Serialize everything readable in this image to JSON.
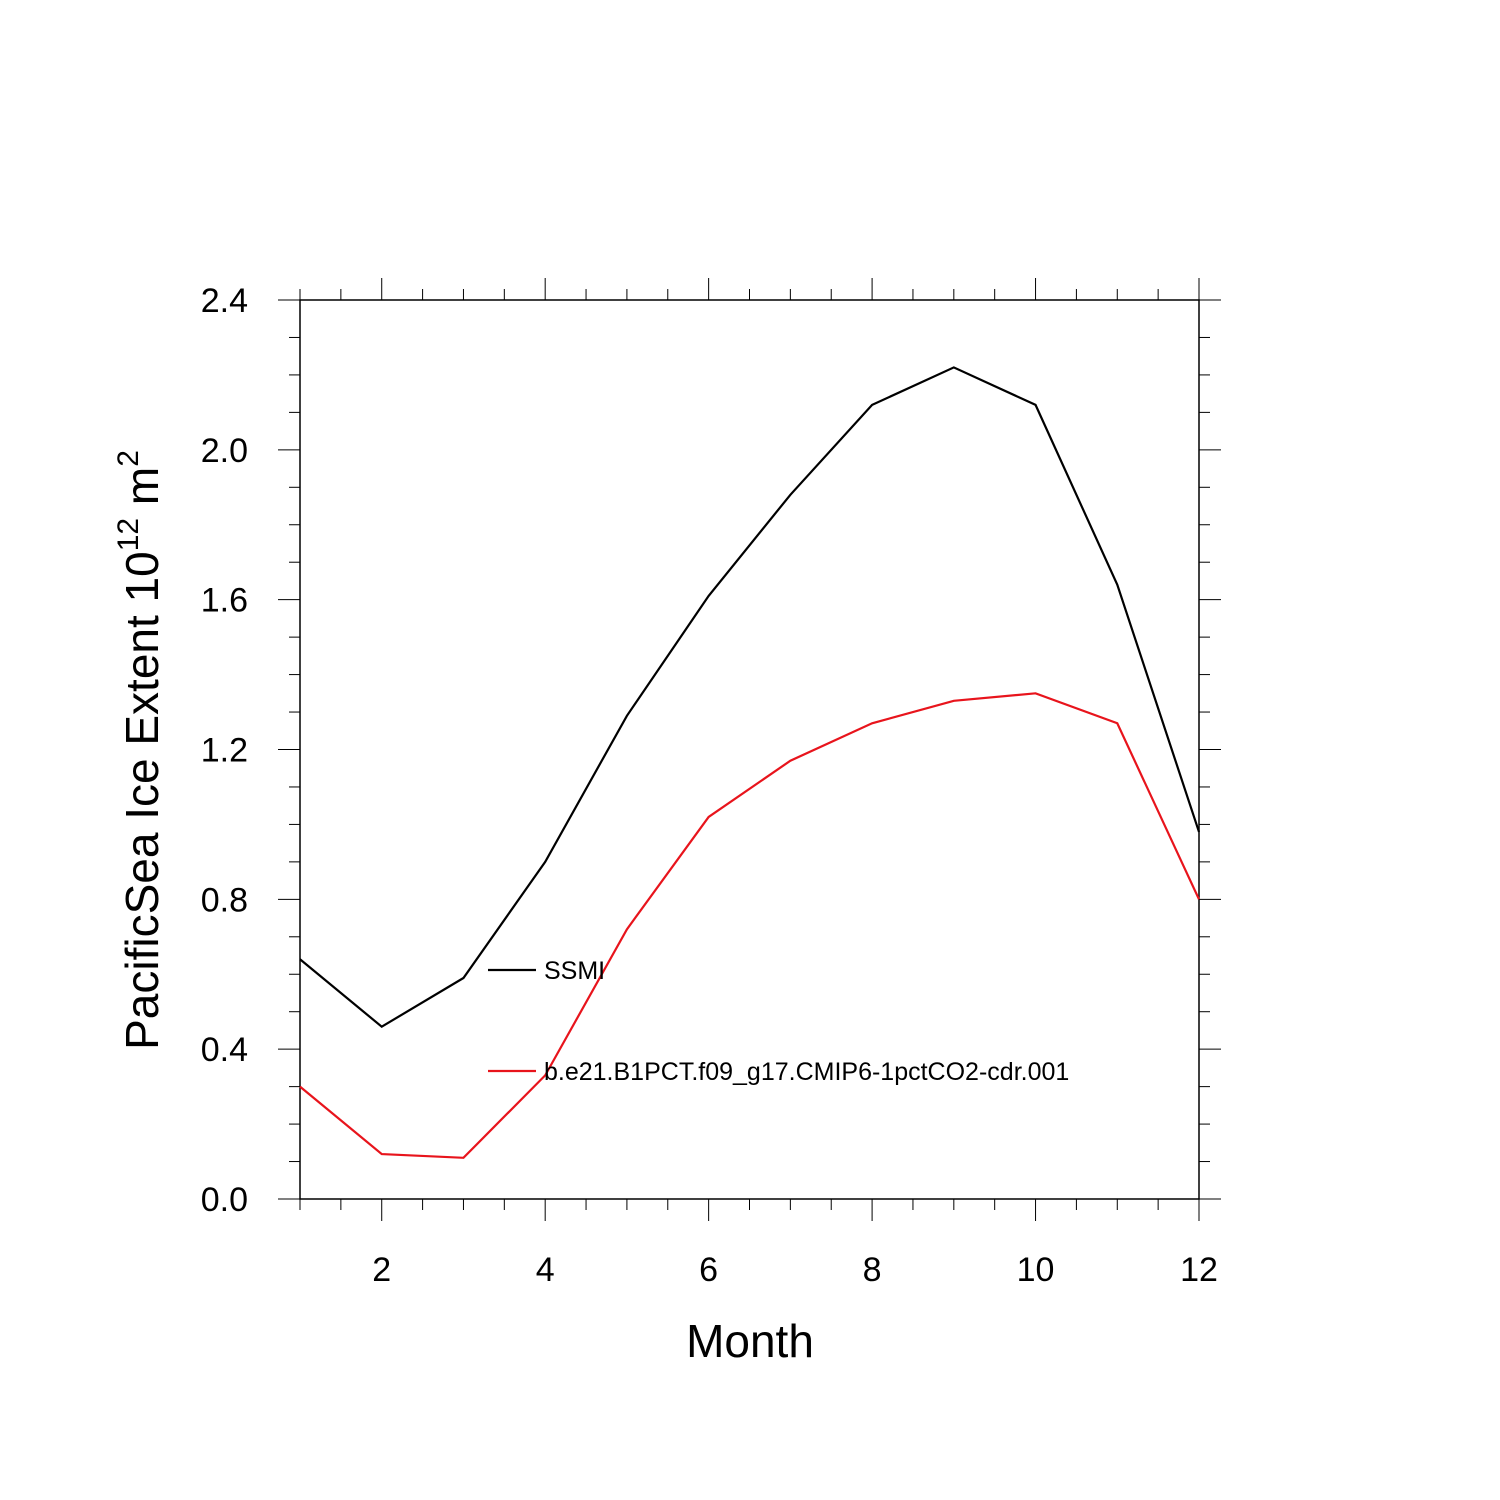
{
  "chart_data": {
    "type": "line",
    "title": "",
    "xlabel": "Month",
    "ylabel": {
      "prefix": "PacificSea Ice Extent 10",
      "superscript": "12",
      "unit": " m",
      "unit_superscript": "2"
    },
    "xlim": [
      1,
      12
    ],
    "ylim": [
      0,
      2.4
    ],
    "x_ticks": [
      2,
      4,
      6,
      8,
      10,
      12
    ],
    "x_tick_labels": [
      "2",
      "4",
      "6",
      "8",
      "10",
      "12"
    ],
    "y_ticks": [
      0,
      0.4,
      0.8,
      1.2,
      1.6,
      2.0,
      2.4
    ],
    "y_tick_labels": [
      "0.0",
      "0.4",
      "0.8",
      "1.2",
      "1.6",
      "2.0",
      "2.4"
    ],
    "x": [
      1,
      2,
      3,
      4,
      5,
      6,
      7,
      8,
      9,
      10,
      11,
      12
    ],
    "series": [
      {
        "name": "SSMI",
        "color": "#000000",
        "values": [
          0.64,
          0.46,
          0.59,
          0.9,
          1.29,
          1.61,
          1.88,
          2.12,
          2.22,
          2.12,
          1.64,
          0.98
        ]
      },
      {
        "name": "b.e21.B1PCT.f09_g17.CMIP6-1pctCO2-cdr.001",
        "color": "#e8141c",
        "values": [
          0.3,
          0.12,
          0.11,
          0.33,
          0.72,
          1.02,
          1.17,
          1.27,
          1.33,
          1.35,
          1.27,
          0.8
        ]
      }
    ],
    "grid": false,
    "legend_position": "inside-lower-center"
  }
}
